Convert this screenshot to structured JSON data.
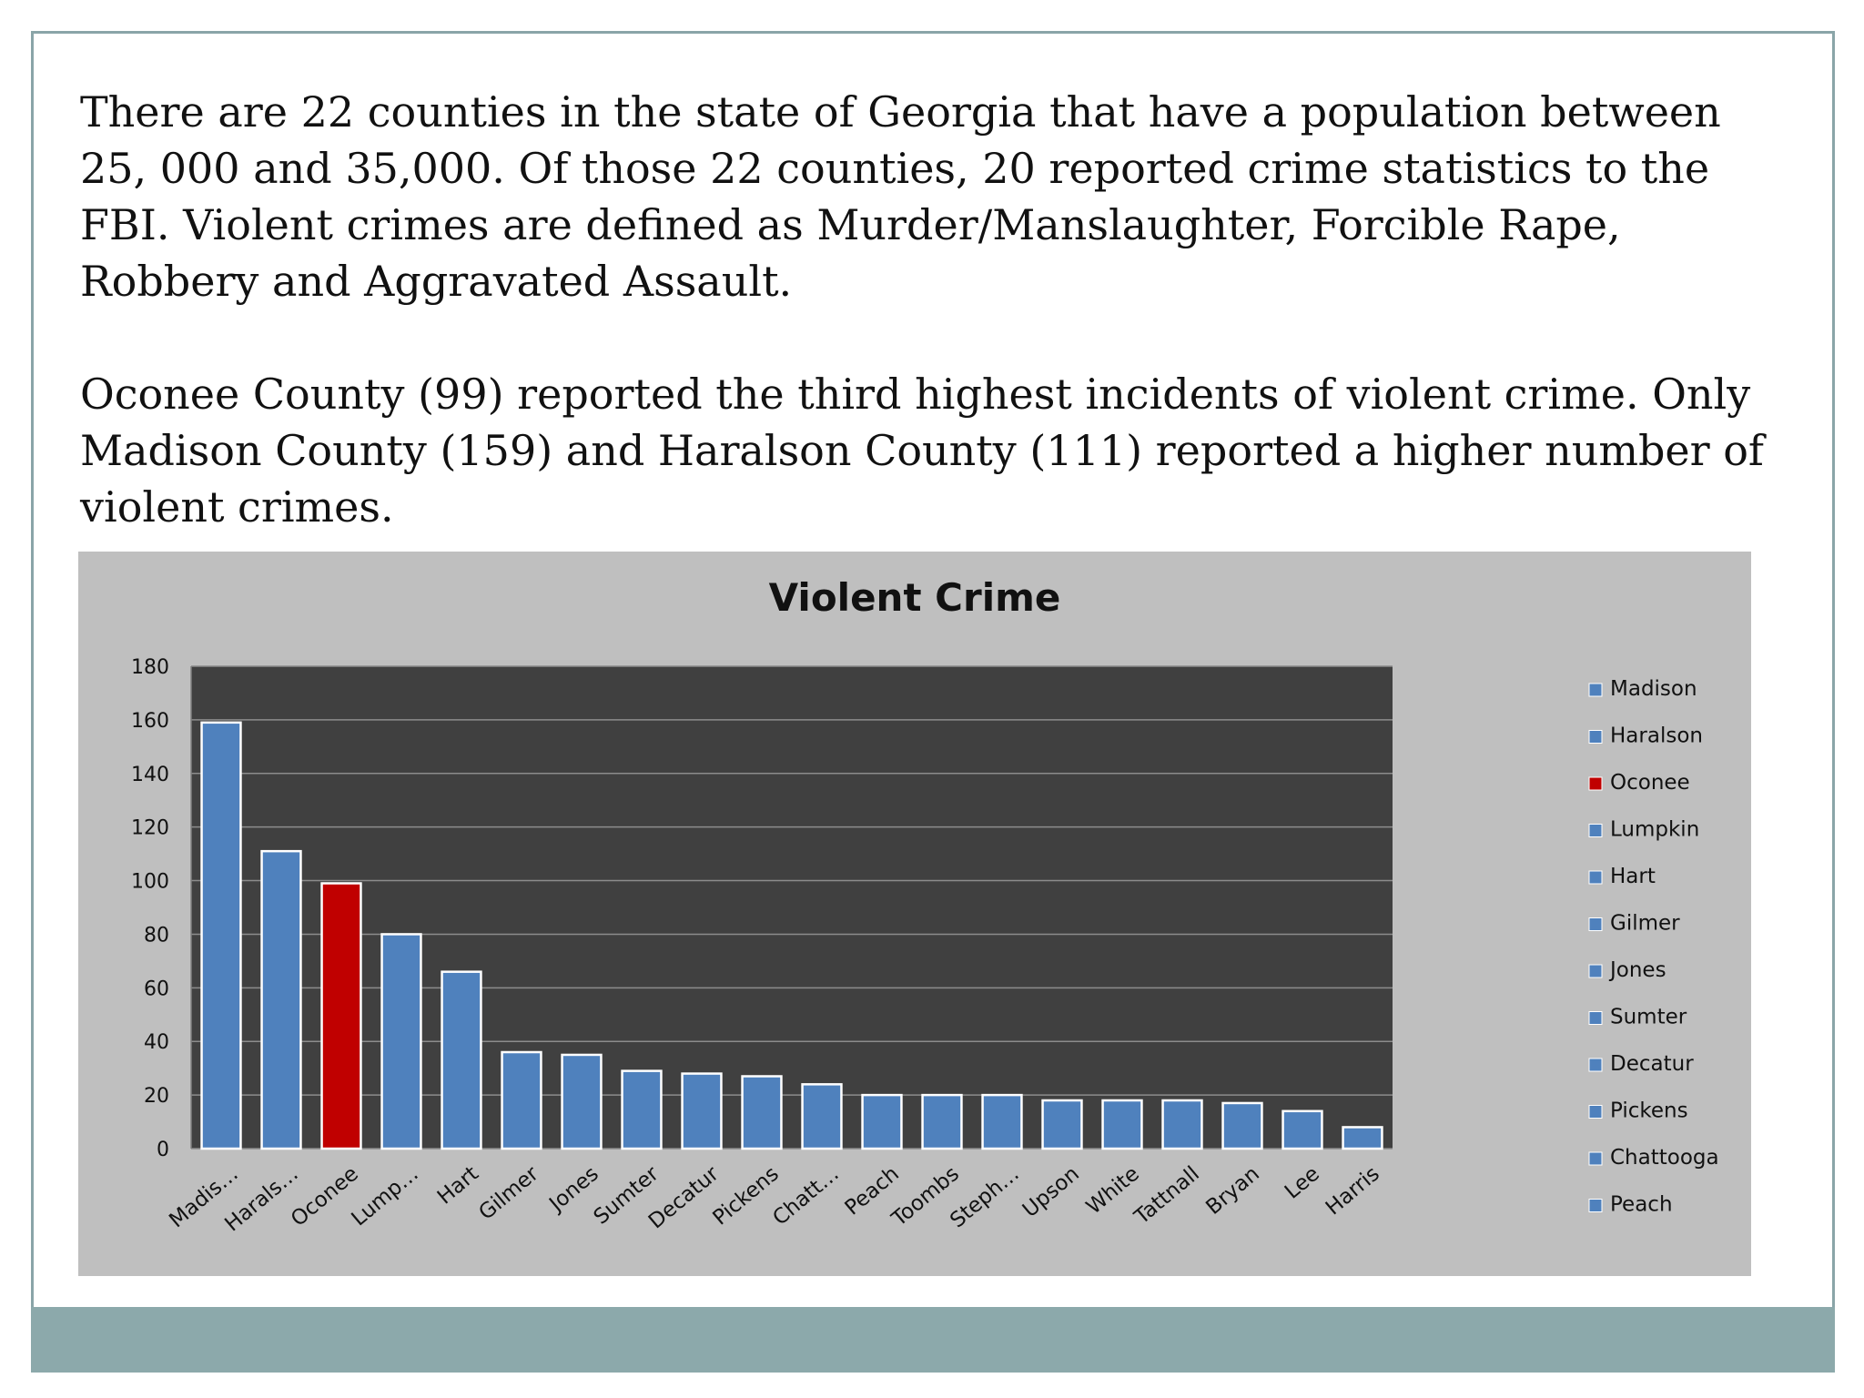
{
  "slide": {
    "paragraph_1": "There are 22 counties in the state of Georgia that have a population between 25, 000 and 35,000.  Of those 22 counties, 20 reported crime statistics to the FBI.  Violent crimes are defined as  Murder/Manslaughter, Forcible Rape, Robbery and Aggravated Assault.",
    "paragraph_2": "Oconee County (99) reported the third highest incidents of violent crime.  Only Madison County (159) and Haralson County (111) reported a higher number of violent crimes."
  },
  "chart_data": {
    "type": "bar",
    "title": "Violent Crime",
    "xlabel": "",
    "ylabel": "",
    "ylim": [
      0,
      180
    ],
    "yticks": [
      0,
      20,
      40,
      60,
      80,
      100,
      120,
      140,
      160,
      180
    ],
    "categories": [
      "Madison",
      "Haralson",
      "Oconee",
      "Lumpkin",
      "Hart",
      "Gilmer",
      "Jones",
      "Sumter",
      "Decatur",
      "Pickens",
      "Chattooga",
      "Peach",
      "Toombs",
      "Stephens",
      "Upson",
      "White",
      "Tattnall",
      "Bryan",
      "Lee",
      "Harris"
    ],
    "tick_labels": [
      "Madis…",
      "Harals…",
      "Oconee",
      "Lump…",
      "Hart",
      "Gilmer",
      "Jones",
      "Sumter",
      "Decatur",
      "Pickens",
      "Chatt…",
      "Peach",
      "Toombs",
      "Steph…",
      "Upson",
      "White",
      "Tattnall",
      "Bryan",
      "Lee",
      "Harris"
    ],
    "values": [
      159,
      111,
      99,
      80,
      66,
      36,
      35,
      29,
      28,
      27,
      24,
      20,
      20,
      20,
      18,
      18,
      18,
      17,
      14,
      8
    ],
    "highlight_index": 2,
    "grid": true,
    "legend": {
      "placement": "right",
      "entries": [
        "Madison",
        "Haralson",
        "Oconee",
        "Lumpkin",
        "Hart",
        "Gilmer",
        "Jones",
        "Sumter",
        "Decatur",
        "Pickens",
        "Chattooga",
        "Peach"
      ]
    },
    "colors": {
      "bar": "#4f81bd",
      "highlight": "#c00000",
      "plot_bg": "#404040",
      "chart_bg": "#bfbfbf",
      "gridline": "#8c8c8c"
    }
  }
}
